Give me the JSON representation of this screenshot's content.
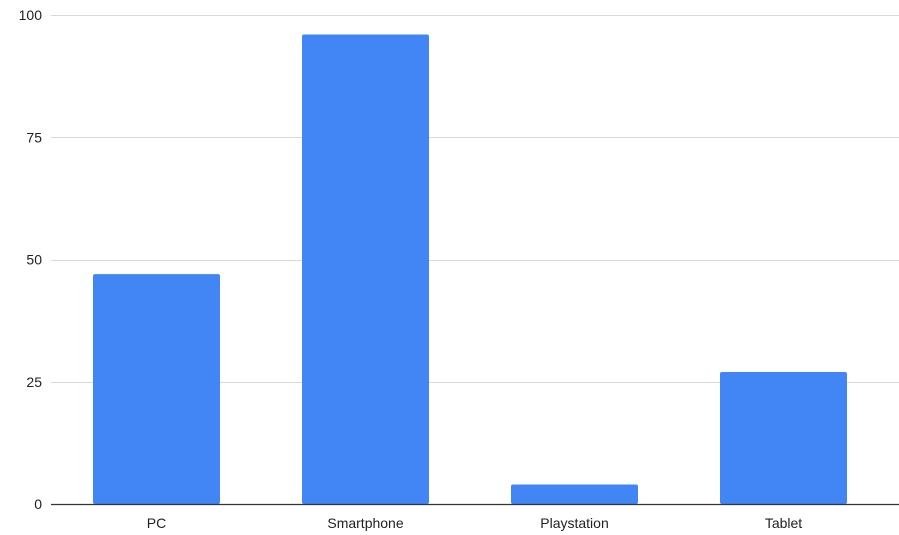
{
  "chart_data": {
    "type": "bar",
    "categories": [
      "PC",
      "Smartphone",
      "Playstation",
      "Tablet"
    ],
    "values": [
      47,
      96,
      4,
      27
    ],
    "title": "",
    "xlabel": "",
    "ylabel": "",
    "ylim": [
      0,
      100
    ],
    "yticks": [
      0,
      25,
      50,
      75,
      100
    ],
    "ytick_labels": [
      "0",
      "25",
      "50",
      "75",
      "100"
    ],
    "grid": true,
    "legend": "none",
    "colors": {
      "bar": "#4285f4",
      "grid": "#d9d9d9",
      "axis": "#333333",
      "text": "#222222",
      "background": "#ffffff"
    }
  }
}
